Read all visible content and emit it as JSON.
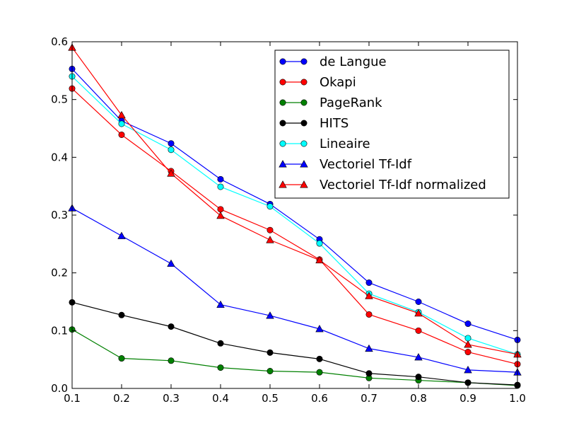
{
  "chart_data": {
    "type": "line",
    "title": "",
    "xlabel": "",
    "ylabel": "",
    "xlim": [
      0.1,
      1.0
    ],
    "ylim": [
      0.0,
      0.6
    ],
    "grid": false,
    "legend_position": "top-right",
    "x": [
      0.1,
      0.2,
      0.3,
      0.4,
      0.5,
      0.6,
      0.7,
      0.8,
      0.9,
      1.0
    ],
    "x_tick_labels": [
      "0.1",
      "0.2",
      "0.3",
      "0.4",
      "0.5",
      "0.6",
      "0.7",
      "0.8",
      "0.9",
      "1.0"
    ],
    "y_ticks": [
      0.0,
      0.1,
      0.2,
      0.3,
      0.4,
      0.5,
      0.6
    ],
    "y_tick_labels": [
      "0.0",
      "0.1",
      "0.2",
      "0.3",
      "0.4",
      "0.5",
      "0.6"
    ],
    "series": [
      {
        "name": "de Langue",
        "color": "#0000ff",
        "marker": "circle",
        "values": [
          0.553,
          0.463,
          0.424,
          0.362,
          0.319,
          0.258,
          0.183,
          0.15,
          0.112,
          0.084
        ]
      },
      {
        "name": "Okapi",
        "color": "#ff0000",
        "marker": "circle",
        "values": [
          0.519,
          0.439,
          0.376,
          0.31,
          0.274,
          0.223,
          0.128,
          0.1,
          0.063,
          0.042
        ]
      },
      {
        "name": "PageRank",
        "color": "#008000",
        "marker": "circle",
        "values": [
          0.102,
          0.052,
          0.048,
          0.036,
          0.03,
          0.028,
          0.018,
          0.014,
          0.01,
          0.005
        ]
      },
      {
        "name": "HITS",
        "color": "#000000",
        "marker": "circle",
        "values": [
          0.149,
          0.127,
          0.107,
          0.078,
          0.062,
          0.051,
          0.026,
          0.02,
          0.01,
          0.006
        ]
      },
      {
        "name": "Lineaire",
        "color": "#00ffff",
        "marker": "circle",
        "values": [
          0.54,
          0.458,
          0.413,
          0.349,
          0.315,
          0.251,
          0.164,
          0.132,
          0.087,
          0.059
        ]
      },
      {
        "name": "Vectoriel Tf-Idf",
        "color": "#0000ff",
        "marker": "triangle",
        "values": [
          0.312,
          0.264,
          0.216,
          0.145,
          0.126,
          0.103,
          0.069,
          0.054,
          0.032,
          0.028
        ]
      },
      {
        "name": "Vectoriel Tf-Idf normalized",
        "color": "#ff0000",
        "marker": "triangle",
        "values": [
          0.59,
          0.473,
          0.372,
          0.299,
          0.257,
          0.222,
          0.16,
          0.13,
          0.076,
          0.059
        ]
      }
    ]
  }
}
